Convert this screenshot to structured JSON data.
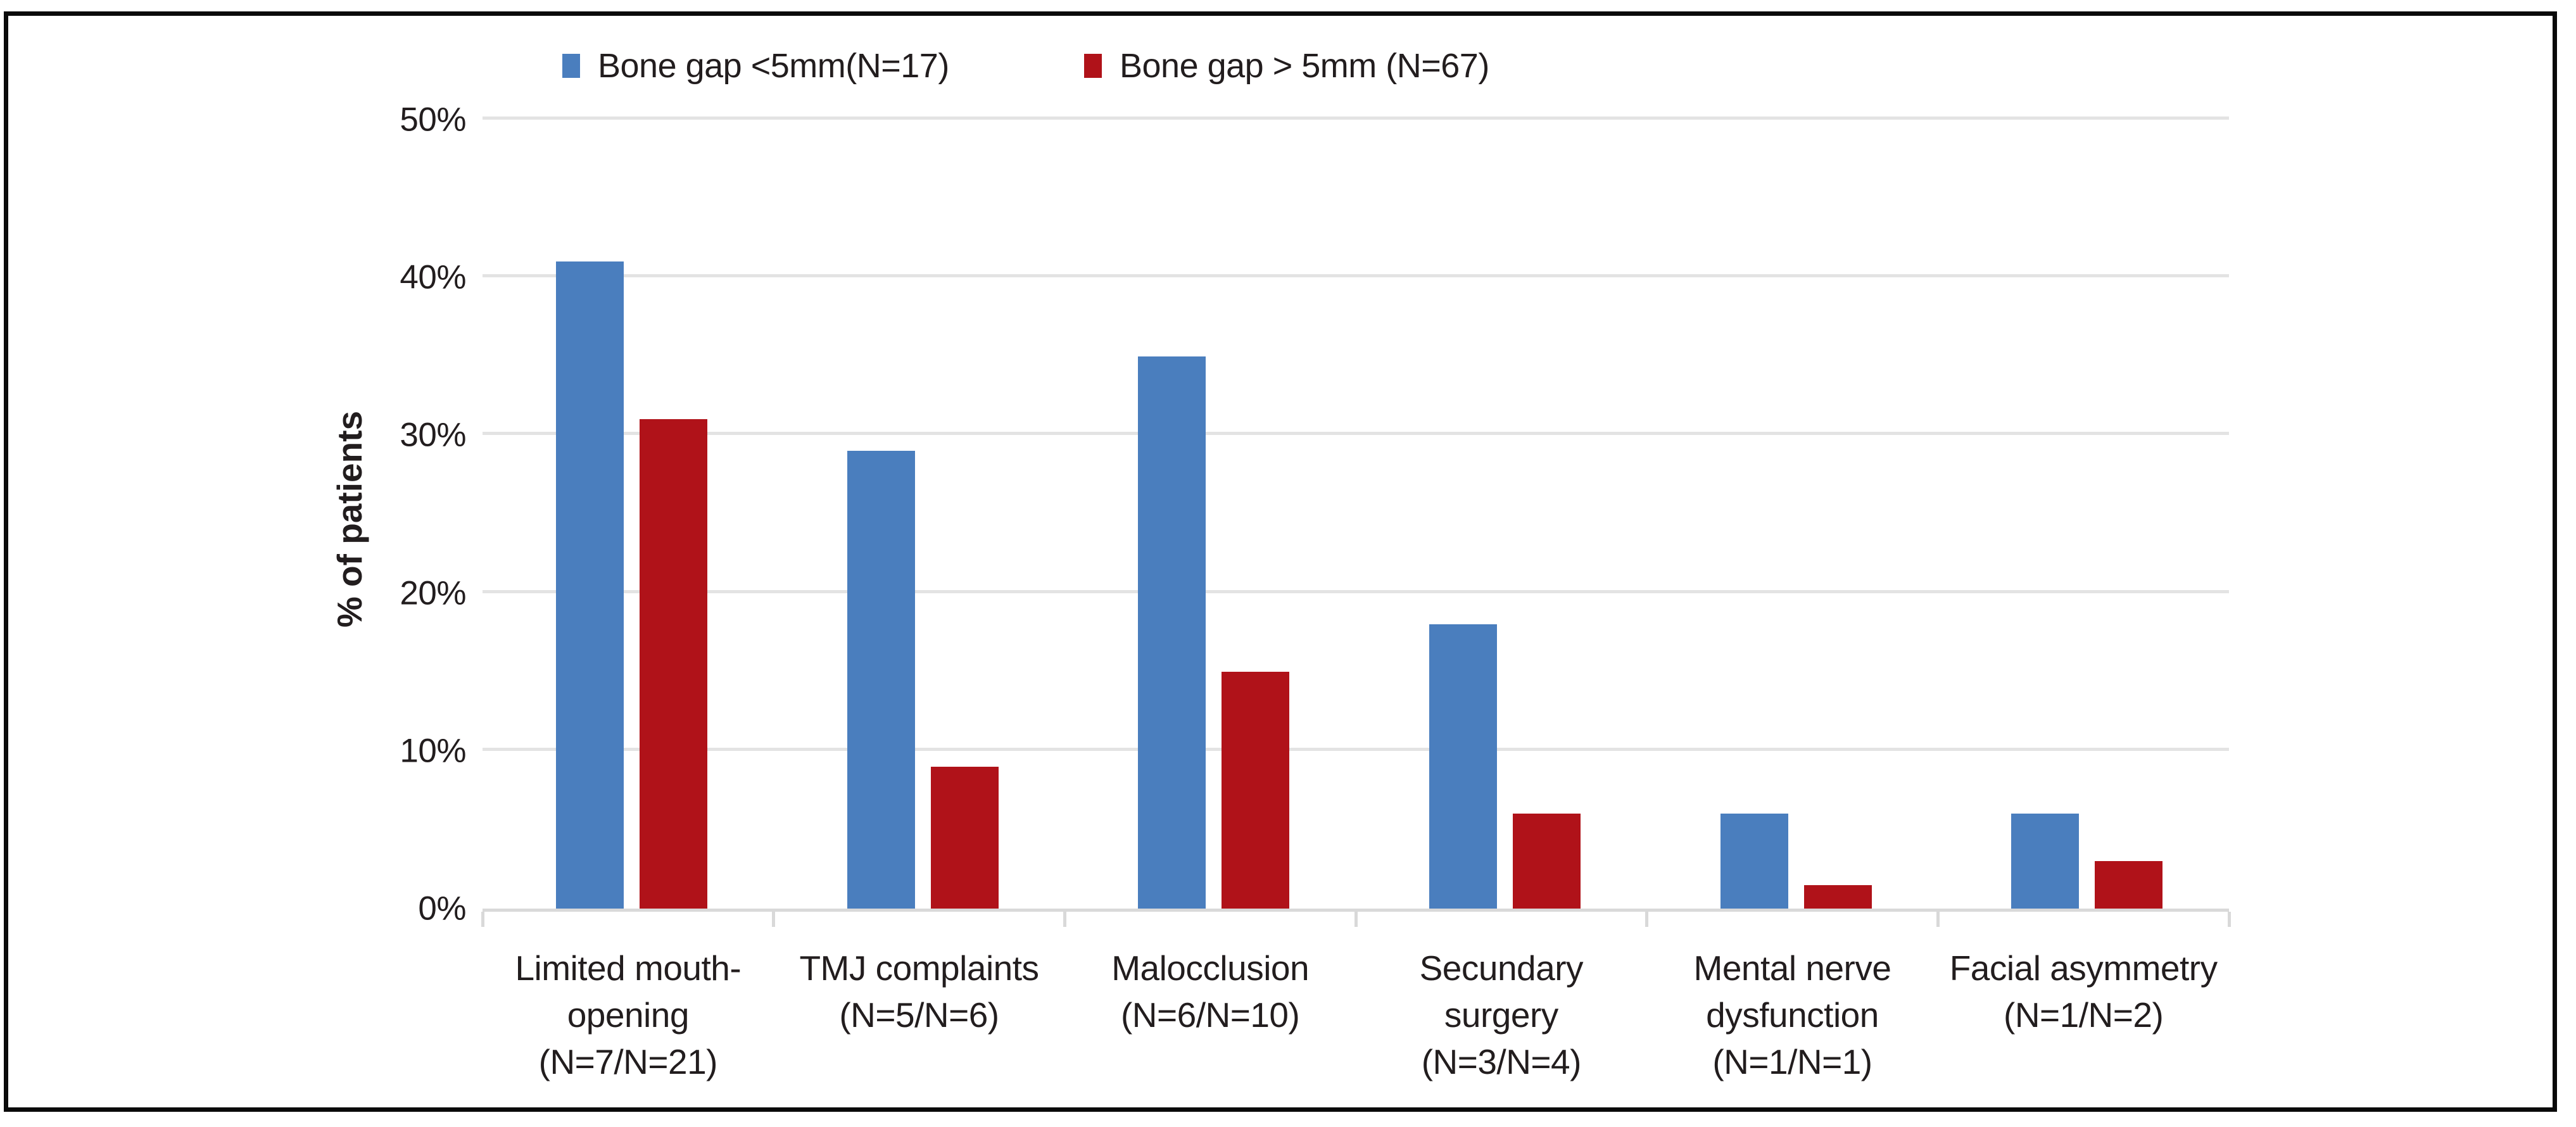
{
  "figure": {
    "background": "#FFFFFF",
    "border_color": "#0A0A0A"
  },
  "legend": [
    {
      "label": "Bone gap <5mm(N=17)",
      "color": "#4A7EBE"
    },
    {
      "label": "Bone gap > 5mm (N=67)",
      "color": "#B01219"
    }
  ],
  "chart_data": {
    "type": "bar",
    "title": "",
    "xlabel": "",
    "ylabel": "% of patients",
    "ylim": [
      0,
      50
    ],
    "ytick_step": 10,
    "ytick_labels": [
      "0%",
      "10%",
      "20%",
      "30%",
      "40%",
      "50%"
    ],
    "grid": true,
    "legend_position": "top",
    "categories": [
      "Limited mouth-\nopening\n(N=7/N=21)",
      "TMJ complaints\n(N=5/N=6)",
      "Malocclusion\n(N=6/N=10)",
      "Secundary\nsurgery\n(N=3/N=4)",
      "Mental nerve\ndysfunction\n(N=1/N=1)",
      "Facial asymmetry\n(N=1/N=2)"
    ],
    "series": [
      {
        "name": "Bone gap <5mm(N=17)",
        "color": "#4A7EBE",
        "values": [
          41,
          29,
          35,
          18,
          6,
          6
        ]
      },
      {
        "name": "Bone gap > 5mm (N=67)",
        "color": "#B01219",
        "values": [
          31,
          9,
          15,
          6,
          1.5,
          3
        ]
      }
    ]
  },
  "colors": {
    "gridline": "#E3E3E3",
    "axis_line": "#D9D9D9",
    "text": "#221D1E"
  }
}
